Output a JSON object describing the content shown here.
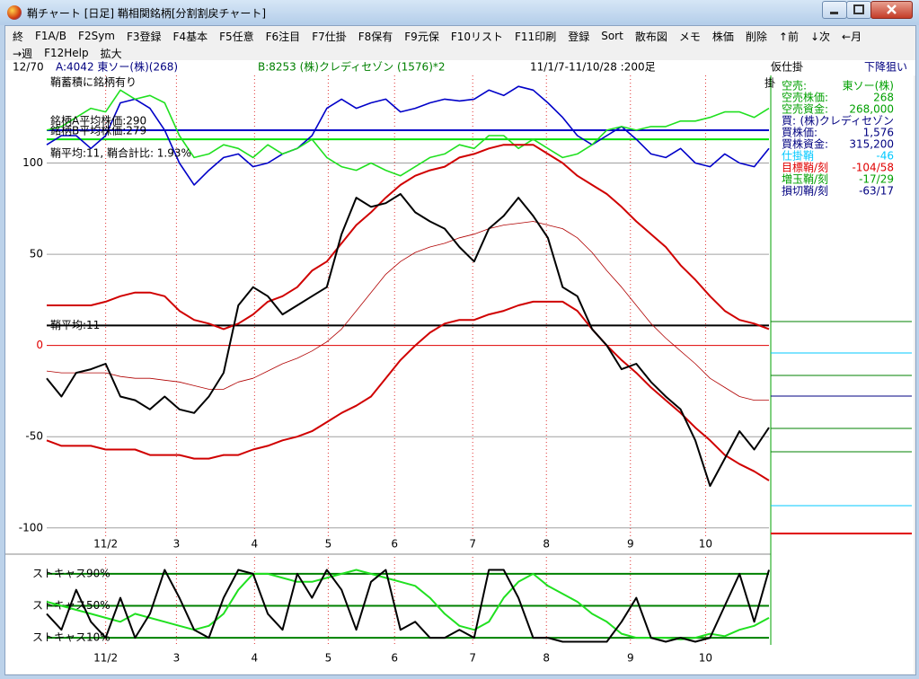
{
  "window": {
    "title": "鞘チャート [日足] 鞘相関銘柄[分割割戻チャート]"
  },
  "menu": {
    "row1": [
      "終",
      "F1A/B",
      "F2Sym",
      "F3登録",
      "F4基本",
      "F5任意",
      "F6注目",
      "F7仕掛",
      "F8保有",
      "F9元保",
      "F10リスト",
      "F11印刷",
      "登録",
      "Sort",
      "散布図",
      "メモ",
      "株価",
      "削除",
      "↑前",
      "↓次",
      "←月"
    ],
    "row2": [
      "→週",
      "F12Help",
      "拡大"
    ]
  },
  "info": {
    "count": "12/70",
    "a": "A:4042 東ソー(株)(268)",
    "b": "B:8253 (株)クレディセゾン (1576)*2",
    "period": "11/1/7-11/10/28 :200足",
    "mode": "仮仕掛",
    "mode_wrap": "掛",
    "strategy": "下降狙い"
  },
  "chart_data": [
    {
      "type": "line",
      "annotations": [
        "鞘蓄積に銘柄有り",
        "銘柄A平均株価:290",
        "銘柄B平均株価:279",
        "鞘平均:11, 鞘合計比: 1.93%"
      ],
      "ylim": [
        -106,
        148
      ],
      "yticks": [
        100,
        50,
        0,
        -50,
        -100
      ],
      "grid": true,
      "xlim": [
        0,
        49
      ],
      "xticks": [
        {
          "value": 4,
          "label": "11/2"
        },
        {
          "value": 8.8,
          "label": "3"
        },
        {
          "value": 14.1,
          "label": "4"
        },
        {
          "value": 19.1,
          "label": "5"
        },
        {
          "value": 23.6,
          "label": "6"
        },
        {
          "value": 28.9,
          "label": "7"
        },
        {
          "value": 33.9,
          "label": "8"
        },
        {
          "value": 39.6,
          "label": "9"
        },
        {
          "value": 44.7,
          "label": "10"
        }
      ],
      "reference_lines": [
        {
          "value": 118,
          "color": "#0000c8"
        },
        {
          "value": 113,
          "color": "#00e000"
        },
        {
          "value": 11,
          "color": "#000000",
          "label": "鞘平均:11"
        },
        {
          "value": 0,
          "color": "#e00000"
        }
      ],
      "series": [
        {
          "color": "#0000c8",
          "width": 1.6,
          "values": [
            110,
            115,
            115,
            108,
            115,
            133,
            135,
            130,
            118,
            100,
            88,
            96,
            103,
            105,
            98,
            100,
            105,
            108,
            115,
            130,
            135,
            130,
            133,
            135,
            128,
            130,
            133,
            135,
            134,
            135,
            140,
            137,
            142,
            140,
            133,
            125,
            115,
            110,
            115,
            120,
            113,
            105,
            103,
            108,
            100,
            98,
            105,
            100,
            98,
            108
          ]
        },
        {
          "color": "#20e020",
          "width": 1.6,
          "values": [
            118,
            120,
            125,
            130,
            128,
            140,
            135,
            137,
            133,
            115,
            103,
            105,
            110,
            108,
            103,
            110,
            105,
            108,
            113,
            103,
            98,
            96,
            100,
            96,
            93,
            98,
            103,
            105,
            110,
            108,
            115,
            115,
            108,
            113,
            108,
            103,
            105,
            110,
            118,
            120,
            118,
            120,
            120,
            123,
            123,
            125,
            128,
            128,
            125,
            130
          ]
        },
        {
          "color": "#d00000",
          "width": 2,
          "values": [
            22,
            22,
            22,
            22,
            24,
            27,
            29,
            29,
            27,
            19,
            14,
            12,
            9,
            12,
            17,
            24,
            27,
            32,
            41,
            46,
            56,
            66,
            73,
            81,
            88,
            93,
            96,
            98,
            103,
            105,
            108,
            110,
            110,
            110,
            105,
            100,
            93,
            88,
            83,
            76,
            68,
            61,
            54,
            44,
            36,
            27,
            19,
            14,
            12,
            9
          ]
        },
        {
          "color": "#d00000",
          "width": 2,
          "values": [
            -52,
            -55,
            -55,
            -55,
            -57,
            -57,
            -57,
            -60,
            -60,
            -60,
            -62,
            -62,
            -60,
            -60,
            -57,
            -55,
            -52,
            -50,
            -47,
            -42,
            -37,
            -33,
            -28,
            -18,
            -8,
            0,
            7,
            12,
            14,
            14,
            17,
            19,
            22,
            24,
            24,
            24,
            19,
            9,
            0,
            -8,
            -15,
            -23,
            -30,
            -37,
            -45,
            -52,
            -60,
            -65,
            -69,
            -74
          ]
        },
        {
          "color": "#b00000",
          "width": 0.8,
          "values": [
            -14,
            -15,
            -15,
            -15,
            -15,
            -17,
            -18,
            -18,
            -19,
            -20,
            -22,
            -24,
            -24,
            -20,
            -18,
            -14,
            -10,
            -7,
            -3,
            2,
            9,
            19,
            29,
            39,
            46,
            51,
            54,
            56,
            59,
            61,
            64,
            66,
            67,
            68,
            66,
            64,
            59,
            51,
            41,
            32,
            22,
            12,
            4,
            -3,
            -10,
            -18,
            -23,
            -28,
            -30,
            -30
          ]
        },
        {
          "color": "#000000",
          "width": 2,
          "values": [
            -18,
            -28,
            -15,
            -13,
            -10,
            -28,
            -30,
            -35,
            -28,
            -35,
            -37,
            -28,
            -15,
            22,
            32,
            27,
            17,
            22,
            27,
            32,
            61,
            81,
            76,
            78,
            83,
            73,
            68,
            64,
            54,
            46,
            64,
            71,
            81,
            71,
            59,
            32,
            27,
            9,
            0,
            -13,
            -10,
            -20,
            -28,
            -35,
            -52,
            -77,
            -62,
            -47,
            -57,
            -45
          ]
        }
      ]
    },
    {
      "type": "line",
      "ylim": [
        0,
        100
      ],
      "xlim": [
        0,
        49
      ],
      "reference_lines": [
        {
          "value": 90,
          "color": "#008000",
          "label": "ストキャス90%"
        },
        {
          "value": 50,
          "color": "#008000",
          "label": "ストキャス50%"
        },
        {
          "value": 10,
          "color": "#008000",
          "label": "ストキャス10%"
        }
      ],
      "series": [
        {
          "color": "#20e020",
          "width": 2,
          "values": [
            55,
            50,
            45,
            40,
            35,
            30,
            40,
            35,
            30,
            25,
            20,
            25,
            40,
            70,
            90,
            90,
            85,
            80,
            80,
            85,
            90,
            95,
            90,
            85,
            80,
            75,
            60,
            40,
            25,
            20,
            30,
            60,
            80,
            90,
            75,
            65,
            55,
            40,
            30,
            15,
            10,
            10,
            10,
            8,
            10,
            15,
            12,
            20,
            25,
            35
          ]
        },
        {
          "color": "#000000",
          "width": 2,
          "values": [
            40,
            20,
            70,
            30,
            10,
            60,
            10,
            40,
            95,
            60,
            20,
            10,
            60,
            95,
            90,
            40,
            20,
            90,
            60,
            95,
            70,
            20,
            80,
            95,
            20,
            30,
            10,
            10,
            20,
            10,
            95,
            95,
            60,
            10,
            10,
            5,
            5,
            5,
            5,
            30,
            60,
            10,
            5,
            10,
            5,
            10,
            50,
            90,
            30,
            95
          ]
        }
      ]
    }
  ],
  "side_panel": {
    "rows": [
      {
        "label": "空売:",
        "value": "東ソー(株)",
        "color": "#00a000"
      },
      {
        "label": "空売株価:",
        "value": "268",
        "color": "#00a000"
      },
      {
        "label": "空売資金:",
        "value": "268,000",
        "color": "#00a000"
      },
      {
        "label": "買:",
        "value": "(株)クレディセゾン",
        "color": "#000080"
      },
      {
        "label": "買株価:",
        "value": "1,576",
        "color": "#000080"
      },
      {
        "label": "買株資金:",
        "value": "315,200",
        "color": "#000080"
      },
      {
        "label": "仕掛鞘",
        "value": "-46",
        "color": "#00c8ff"
      },
      {
        "label": "目標鞘/刻",
        "value": "-104/58",
        "color": "#e00000"
      },
      {
        "label": "増玉鞘/刻",
        "value": "-17/29",
        "color": "#00a000"
      },
      {
        "label": "損切鞘/刻",
        "value": "-63/17",
        "color": "#000080"
      }
    ]
  }
}
